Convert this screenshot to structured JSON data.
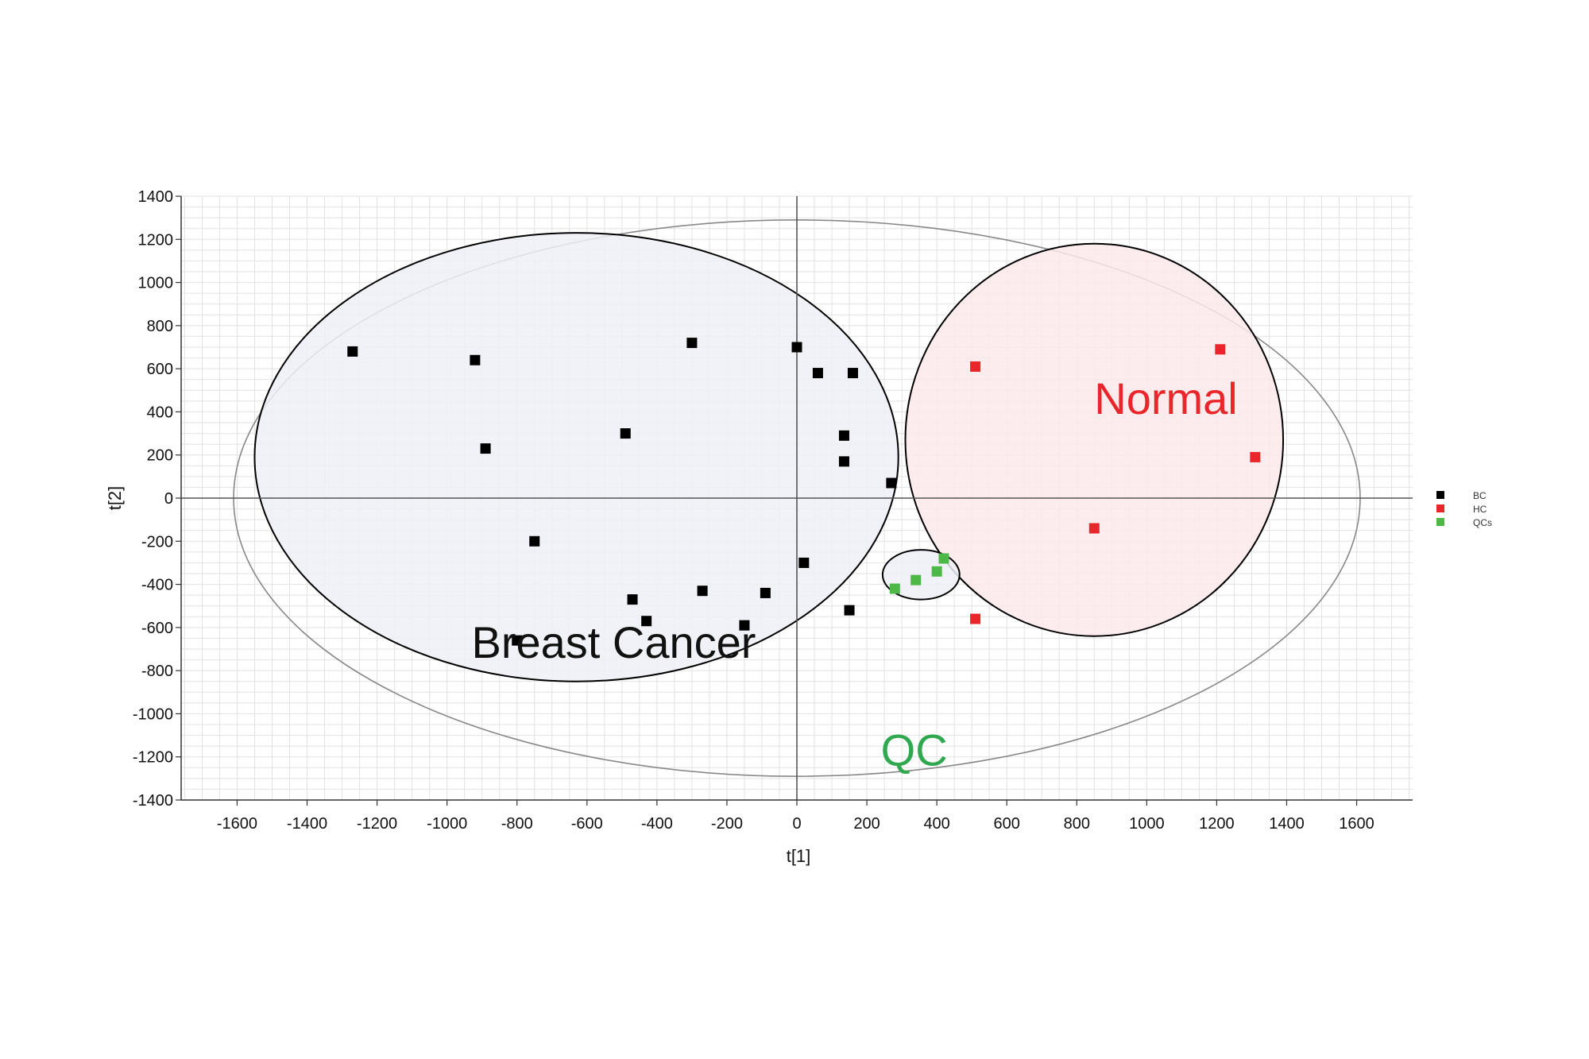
{
  "chart_data": {
    "type": "scatter",
    "xlabel": "t[1]",
    "ylabel": "t[2]",
    "xlim": [
      -1760,
      1760
    ],
    "ylim": [
      -1400,
      1400
    ],
    "x_ticks": [
      -1600,
      -1400,
      -1200,
      -1000,
      -800,
      -600,
      -400,
      -200,
      0,
      200,
      400,
      600,
      800,
      1000,
      1200,
      1400,
      1600
    ],
    "y_ticks": [
      1400,
      1200,
      1000,
      800,
      600,
      400,
      200,
      0,
      -200,
      -400,
      -600,
      -800,
      -1000,
      -1200,
      -1400
    ],
    "grid": true,
    "legend_position": "right",
    "series": [
      {
        "name": "BC",
        "color": "#000000",
        "points": [
          [
            -1270,
            680
          ],
          [
            -920,
            640
          ],
          [
            -890,
            230
          ],
          [
            -300,
            720
          ],
          [
            -490,
            300
          ],
          [
            0,
            700
          ],
          [
            60,
            580
          ],
          [
            160,
            580
          ],
          [
            135,
            290
          ],
          [
            135,
            170
          ],
          [
            270,
            70
          ],
          [
            -750,
            -200
          ],
          [
            20,
            -300
          ],
          [
            -470,
            -470
          ],
          [
            -270,
            -430
          ],
          [
            -90,
            -440
          ],
          [
            -430,
            -570
          ],
          [
            -150,
            -590
          ],
          [
            150,
            -520
          ],
          [
            -800,
            -660
          ]
        ]
      },
      {
        "name": "HC",
        "color": "#e8262b",
        "points": [
          [
            510,
            610
          ],
          [
            1210,
            690
          ],
          [
            1310,
            190
          ],
          [
            850,
            -140
          ],
          [
            510,
            -560
          ]
        ]
      },
      {
        "name": "QCs",
        "color": "#4db848",
        "points": [
          [
            420,
            -280
          ],
          [
            400,
            -340
          ],
          [
            340,
            -380
          ],
          [
            280,
            -420
          ]
        ]
      }
    ],
    "annotations": [
      {
        "text": "Breast Cancer",
        "x": -930,
        "y": -740,
        "color": "#111111"
      },
      {
        "text": "Normal",
        "x": 850,
        "y": 390,
        "color": "#e8262b"
      },
      {
        "text": "QC",
        "x": 240,
        "y": -1240,
        "color": "#2fa84f"
      }
    ],
    "ellipses": [
      {
        "name": "hotelling-t2-ellipse",
        "cx": 0,
        "cy": 0,
        "rx": 1610,
        "ry": 1290,
        "rotate": 0,
        "fill": "none",
        "stroke": "#888888"
      },
      {
        "name": "breast-cancer-group-ellipse",
        "cx": -630,
        "cy": 190,
        "rx": 920,
        "ry": 1040,
        "rotate": 0,
        "fill": "#eef0f6",
        "stroke": "#000000"
      },
      {
        "name": "normal-group-ellipse",
        "cx": 850,
        "cy": 270,
        "rx": 540,
        "ry": 910,
        "rotate": 0,
        "fill": "#fde9ea",
        "stroke": "#000000"
      },
      {
        "name": "qc-group-ellipse",
        "cx": 355,
        "cy": -355,
        "rx": 110,
        "ry": 115,
        "rotate": 0,
        "fill": "#eef0f6",
        "stroke": "#000000"
      }
    ]
  }
}
